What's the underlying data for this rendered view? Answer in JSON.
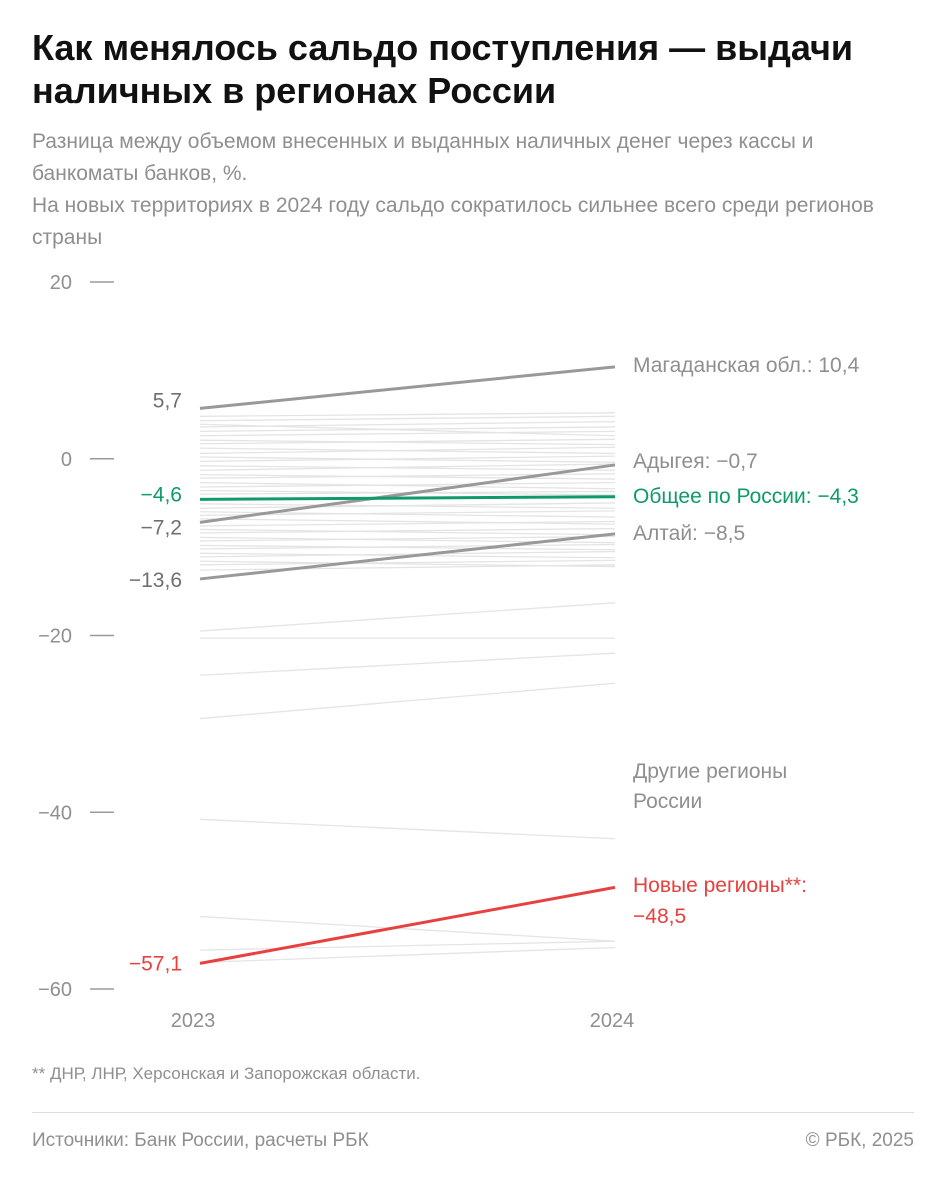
{
  "title": "Как менялось сальдо поступления — выдачи наличных в регионах России",
  "subtitle_line1": "Разница между объемом внесенных и выданных наличных денег через кассы и банкоматы банков, %.",
  "subtitle_line2": "На новых территориях в 2024 году сальдо сократилось сильнее всего среди регионов страны",
  "footnote": "** ДНР, ЛНР, Херсонская и Запорожская области.",
  "source": "Источники: Банк России, расчеты РБК",
  "copyright": "© РБК, 2025",
  "colors": {
    "grey_line": "#999999",
    "background_line": "#e4e4e4",
    "russia": "#0f9a6c",
    "new_regions": "#e8403f",
    "text_grey": "#8f8f8f"
  },
  "chart_data": {
    "type": "line",
    "x": [
      "2023",
      "2024"
    ],
    "ylim": [
      -60,
      20
    ],
    "yticks": [
      "20",
      "0",
      "−20",
      "−40",
      "−60"
    ],
    "ytick_values": [
      20,
      0,
      -20,
      -40,
      -60
    ],
    "highlight_series": [
      {
        "name": "Магаданская обл.",
        "values": [
          5.7,
          10.4
        ],
        "label_2023": "5,7",
        "label_2024": "Магаданская обл.: 10,4",
        "color": "#999999"
      },
      {
        "name": "Адыгея",
        "values": [
          -7.2,
          -0.7
        ],
        "label_2023": "−7,2",
        "label_2024": "Адыгея: −0,7",
        "color": "#999999"
      },
      {
        "name": "Алтай",
        "values": [
          -13.6,
          -8.5
        ],
        "label_2023": "−13,6",
        "label_2024": "Алтай: −8,5",
        "color": "#999999"
      },
      {
        "name": "Общее по России",
        "values": [
          -4.6,
          -4.3
        ],
        "label_2023": "−4,6",
        "label_2024": "Общее по России: −4,3",
        "color": "#0f9a6c"
      },
      {
        "name": "Новые регионы**",
        "values": [
          -57.1,
          -48.5
        ],
        "label_2023": "−57,1",
        "label_2024_line1": "Новые регионы**:",
        "label_2024_line2": "−48,5",
        "color": "#e8403f"
      }
    ],
    "other_regions_label_line1": "Другие регионы",
    "other_regions_label_line2": "России",
    "other_regions": [
      [
        4.8,
        5.2
      ],
      [
        4.3,
        4.8
      ],
      [
        3.6,
        4.2
      ],
      [
        3.9,
        2.6
      ],
      [
        3.1,
        3.6
      ],
      [
        2.6,
        3.1
      ],
      [
        2.1,
        1.6
      ],
      [
        1.7,
        2.2
      ],
      [
        1.2,
        0.6
      ],
      [
        0.6,
        1.3
      ],
      [
        0.2,
        -0.4
      ],
      [
        -0.3,
        0.3
      ],
      [
        -0.8,
        -1.3
      ],
      [
        -1.3,
        -0.6
      ],
      [
        -1.8,
        -2.3
      ],
      [
        -2.2,
        -1.7
      ],
      [
        -2.7,
        -3.4
      ],
      [
        -3.2,
        -2.7
      ],
      [
        -3.6,
        -4.1
      ],
      [
        -4.0,
        -3.7
      ],
      [
        -5.1,
        -5.6
      ],
      [
        -5.6,
        -5.0
      ],
      [
        -6.0,
        -6.6
      ],
      [
        -6.4,
        -5.9
      ],
      [
        -6.8,
        -7.4
      ],
      [
        -7.6,
        -7.1
      ],
      [
        -8.0,
        -8.6
      ],
      [
        -8.4,
        -7.9
      ],
      [
        -8.9,
        -9.5
      ],
      [
        -9.3,
        -8.8
      ],
      [
        -9.8,
        -10.3
      ],
      [
        -10.2,
        -9.7
      ],
      [
        -10.7,
        -11.2
      ],
      [
        -11.1,
        -10.5
      ],
      [
        -11.6,
        -12.2
      ],
      [
        -12.0,
        -11.5
      ],
      [
        -12.6,
        -12.0
      ],
      [
        -19.5,
        -16.3
      ],
      [
        -20.3,
        -20.3
      ],
      [
        -24.5,
        -22.0
      ],
      [
        -29.4,
        -25.4
      ],
      [
        -40.8,
        -43.0
      ],
      [
        -51.8,
        -54.6
      ],
      [
        -55.6,
        -54.6
      ],
      [
        -57.0,
        -55.3
      ]
    ],
    "xlabel": "",
    "ylabel": ""
  }
}
